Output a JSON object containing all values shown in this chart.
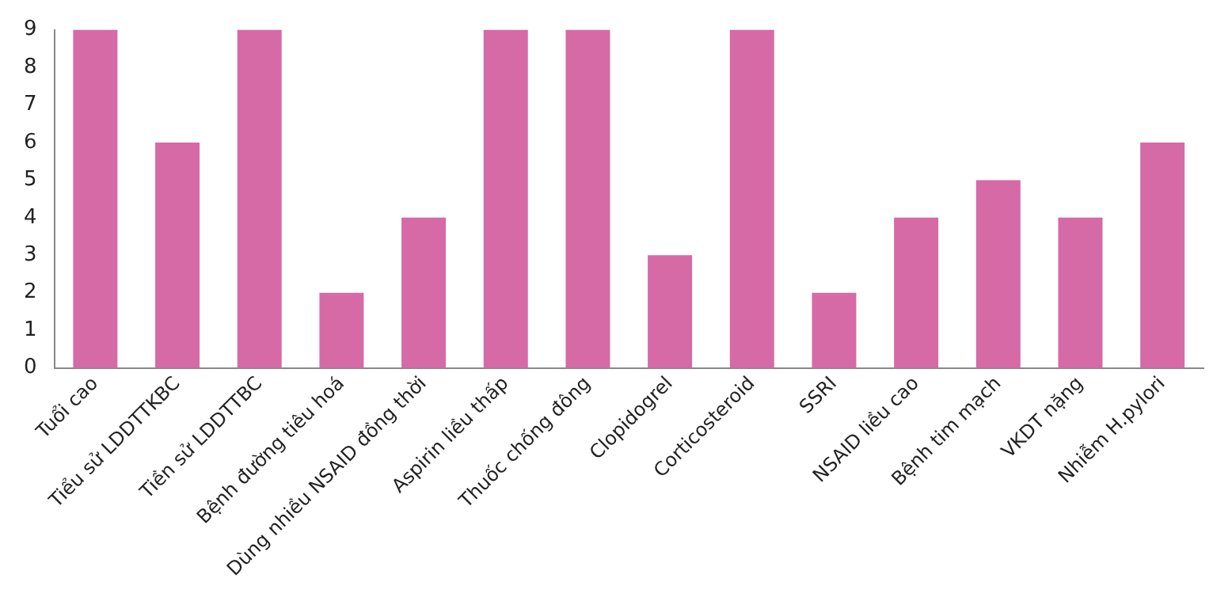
{
  "chart_data": {
    "type": "bar",
    "categories": [
      "Tuổi cao",
      "Tiểu sử LDDTTKBC",
      "Tiền sử LDDTTBC",
      "Bệnh đường tiêu hoá",
      "Dùng nhiều NSAID đồng thời",
      "Aspirin liều thấp",
      "Thuốc chống đông",
      "Clopidogrel",
      "Corticosteroid",
      "SSRI",
      "NSAID liều cao",
      "Bệnh tim mạch",
      "VKDT nặng",
      "Nhiễm H.pylori"
    ],
    "values": [
      9,
      6,
      9,
      2,
      4,
      9,
      9,
      3,
      9,
      2,
      4,
      5,
      4,
      6
    ],
    "color": "#d66aa6",
    "ylim": [
      0,
      9
    ],
    "yticks": [
      0,
      1,
      2,
      3,
      4,
      5,
      6,
      7,
      8,
      9
    ],
    "grid": false
  }
}
